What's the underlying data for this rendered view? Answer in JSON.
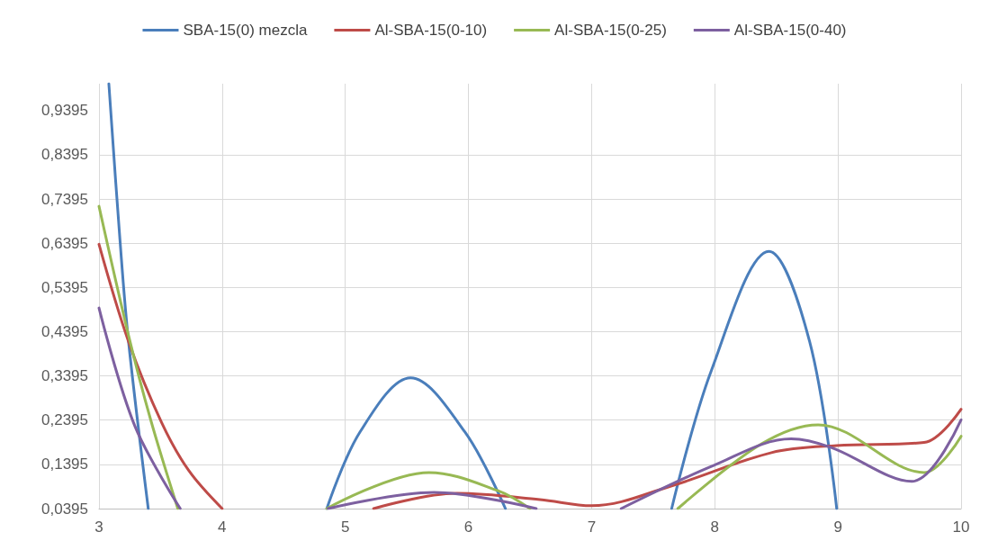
{
  "chart_data": {
    "type": "line",
    "xlim": [
      3,
      10
    ],
    "xticks": [
      3,
      4,
      5,
      6,
      7,
      8,
      9,
      10
    ],
    "ylim": [
      0.0395,
      1.0
    ],
    "yticks": [
      {
        "value": 0.0395,
        "label": "0,0395"
      },
      {
        "value": 0.1395,
        "label": "0,1395"
      },
      {
        "value": 0.2395,
        "label": "0,2395"
      },
      {
        "value": 0.3395,
        "label": "0,3395"
      },
      {
        "value": 0.4395,
        "label": "0,4395"
      },
      {
        "value": 0.5395,
        "label": "0,5395"
      },
      {
        "value": 0.6395,
        "label": "0,6395"
      },
      {
        "value": 0.7395,
        "label": "0,7395"
      },
      {
        "value": 0.8395,
        "label": "0,8395"
      },
      {
        "value": 0.9395,
        "label": "0,9395"
      }
    ],
    "grid": true,
    "legend": "top",
    "marker": "none",
    "line_style": "solid",
    "series": [
      {
        "name": "SBA-15(0) mezcla",
        "color": "#4a7ebb",
        "x": [
          3.08,
          3.17,
          3.24,
          3.4,
          4.1,
          4.85,
          5.12,
          5.53,
          5.97,
          6.3,
          7.0,
          7.65,
          7.97,
          8.44,
          8.77,
          8.99
        ],
        "values": [
          1.0,
          0.648,
          0.417,
          0.0395,
          null,
          0.0395,
          0.213,
          0.335,
          0.213,
          0.0395,
          null,
          0.0395,
          0.35,
          0.621,
          0.417,
          0.0395
        ]
      },
      {
        "name": "Al-SBA-15(0-10)",
        "color": "#be4b48",
        "x": [
          3,
          3.24,
          3.51,
          3.73,
          4.0,
          4.6,
          5.23,
          5.9,
          6.58,
          7.0,
          7.65,
          8.46,
          8.99,
          9.7,
          10
        ],
        "values": [
          0.637,
          0.417,
          0.233,
          0.125,
          0.0395,
          null,
          0.0395,
          0.074,
          0.06,
          0.046,
          0.091,
          0.166,
          0.182,
          0.189,
          0.264
        ]
      },
      {
        "name": "Al-SBA-15(0-25)",
        "color": "#98b954",
        "x": [
          3,
          3.24,
          3.42,
          3.64,
          4.2,
          4.85,
          5.68,
          6.24,
          6.5,
          7.1,
          7.7,
          8.38,
          8.84,
          9.7,
          10
        ],
        "values": [
          0.723,
          0.431,
          0.24,
          0.0395,
          null,
          0.0395,
          0.121,
          0.08,
          0.0395,
          null,
          0.0395,
          0.186,
          0.229,
          0.121,
          0.203
        ]
      },
      {
        "name": "Al-SBA-15(0-40)",
        "color": "#7d60a0",
        "x": [
          3,
          3.29,
          3.66,
          4.2,
          4.86,
          5.72,
          6.55,
          6.9,
          7.24,
          7.99,
          8.62,
          8.94,
          9.6,
          10
        ],
        "values": [
          0.493,
          0.227,
          0.0395,
          null,
          0.0395,
          0.076,
          0.0395,
          null,
          0.0395,
          0.137,
          0.197,
          0.178,
          0.101,
          0.24
        ]
      }
    ]
  }
}
